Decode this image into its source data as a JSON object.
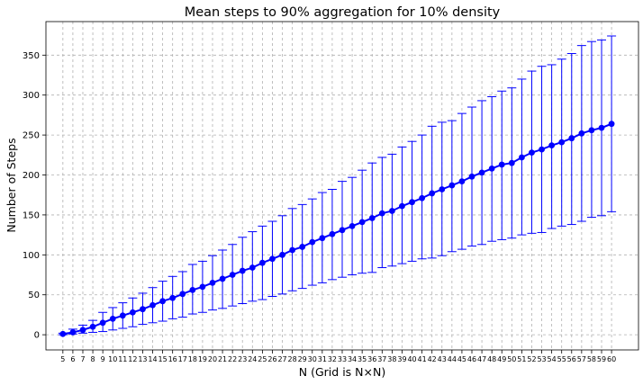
{
  "chart_data": {
    "type": "line",
    "title": "Mean steps to 90% aggregation for 10% density",
    "xlabel": "N (Grid is N×N)",
    "ylabel": "Number of Steps",
    "x": [
      5,
      6,
      7,
      8,
      9,
      10,
      11,
      12,
      13,
      14,
      15,
      16,
      17,
      18,
      19,
      20,
      21,
      22,
      23,
      24,
      25,
      26,
      27,
      28,
      29,
      30,
      31,
      32,
      33,
      34,
      35,
      36,
      37,
      38,
      39,
      40,
      41,
      42,
      43,
      44,
      45,
      46,
      47,
      48,
      49,
      50,
      51,
      52,
      53,
      54,
      55,
      56,
      57,
      58,
      59,
      60
    ],
    "xlim": [
      3.3,
      62.7
    ],
    "ylim": [
      -19,
      392
    ],
    "yticks": [
      0,
      50,
      100,
      150,
      200,
      250,
      300,
      350
    ],
    "grid": true,
    "series": [
      {
        "color": "#0000ff",
        "marker": "circle",
        "mean": [
          1,
          3,
          6,
          10,
          15,
          20,
          24,
          28,
          32,
          37,
          42,
          46,
          51,
          56,
          60,
          65,
          70,
          75,
          80,
          84,
          90,
          95,
          100,
          106,
          110,
          116,
          121,
          126,
          131,
          136,
          141,
          146,
          152,
          155,
          161,
          166,
          171,
          177,
          182,
          187,
          192,
          198,
          203,
          208,
          213,
          215,
          222,
          228,
          232,
          237,
          241,
          246,
          252,
          256,
          259,
          264
        ],
        "error_low": [
          0,
          1,
          2,
          3,
          4,
          6,
          8,
          10,
          13,
          15,
          17,
          20,
          22,
          26,
          28,
          31,
          33,
          36,
          39,
          42,
          44,
          48,
          51,
          55,
          58,
          62,
          65,
          69,
          72,
          75,
          77,
          78,
          84,
          86,
          89,
          92,
          95,
          96,
          99,
          104,
          107,
          111,
          113,
          117,
          119,
          121,
          125,
          127,
          128,
          133,
          136,
          138,
          142,
          147,
          149,
          154
        ],
        "error_high": [
          2,
          7,
          12,
          18,
          28,
          34,
          40,
          46,
          52,
          59,
          67,
          73,
          79,
          88,
          92,
          99,
          106,
          113,
          122,
          129,
          136,
          142,
          149,
          158,
          163,
          170,
          178,
          182,
          192,
          197,
          206,
          215,
          222,
          226,
          235,
          242,
          250,
          261,
          266,
          268,
          277,
          285,
          293,
          298,
          305,
          309,
          320,
          330,
          336,
          338,
          345,
          352,
          362,
          367,
          369,
          374
        ]
      }
    ]
  }
}
